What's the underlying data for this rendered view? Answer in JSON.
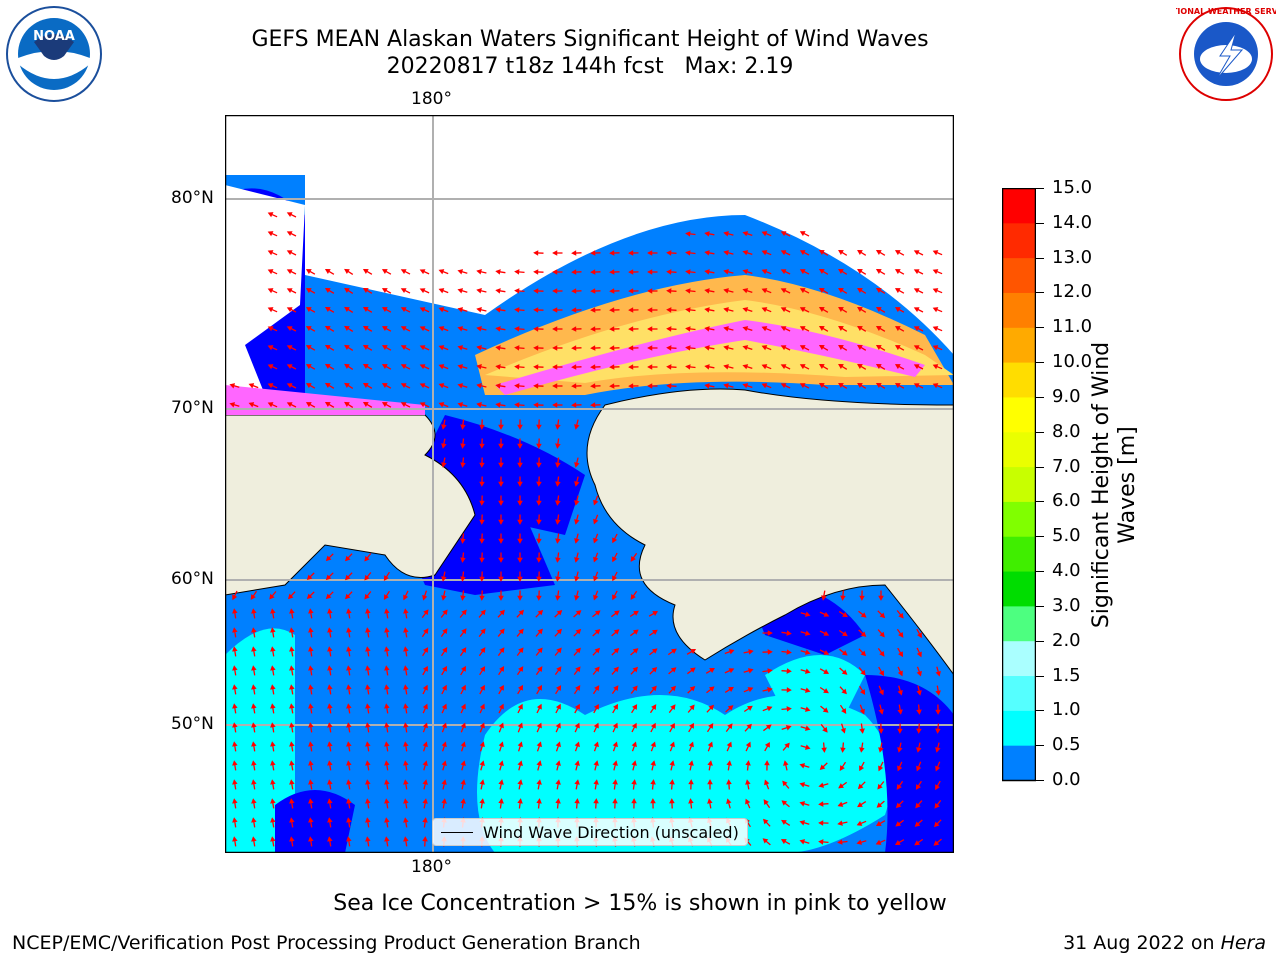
{
  "header": {
    "title_line1": "GEFS MEAN Alaskan Waters Significant Height of Wind Waves",
    "title_line2": "20220817 t18z 144h fcst   Max: 2.19"
  },
  "logos": {
    "left_text": "NOAA",
    "right_text": "NATIONAL WEATHER SERVICE"
  },
  "map": {
    "lon_labels": [
      "180°",
      "180°"
    ],
    "lat_labels": [
      "80°N",
      "70°N",
      "60°N",
      "50°N"
    ],
    "colors": {
      "ocean_low": "#0000ff",
      "ocean_mid": "#0080ff",
      "ocean_high": "#00ffff",
      "land": "#efeedd",
      "ice_white": "#ffffff",
      "ice_pink": "#ff66ff",
      "ice_orange": "#ffb84d",
      "ice_yellow": "#ffe066",
      "arrow": "#ff0000",
      "grid": "#b0b0b0"
    },
    "legend_label": "Wind Wave Direction (unscaled)"
  },
  "colorbar": {
    "title": "Significant Height of Wind Waves [m]",
    "ticks": [
      "15.0",
      "14.0",
      "13.0",
      "12.0",
      "11.0",
      "10.0",
      "9.0",
      "8.0",
      "7.0",
      "6.0",
      "5.0",
      "4.0",
      "3.0",
      "2.0",
      "1.5",
      "1.0",
      "0.5",
      "0.0"
    ],
    "colors": [
      "#ff0000",
      "#ff2a00",
      "#ff5500",
      "#ff8000",
      "#ffaa00",
      "#ffdd00",
      "#ffff00",
      "#eaff00",
      "#c8ff00",
      "#80ff00",
      "#40ee00",
      "#00dd00",
      "#4dff80",
      "#aaffff",
      "#55ffff",
      "#00ffff",
      "#0080ff",
      "#0000ff"
    ]
  },
  "footer": {
    "note": "Sea Ice Concentration > 15% is shown in pink to yellow",
    "credit_left": "NCEP/EMC/Verification Post Processing Product Generation Branch",
    "credit_date": "31 Aug 2022 on ",
    "credit_machine": "Hera"
  }
}
